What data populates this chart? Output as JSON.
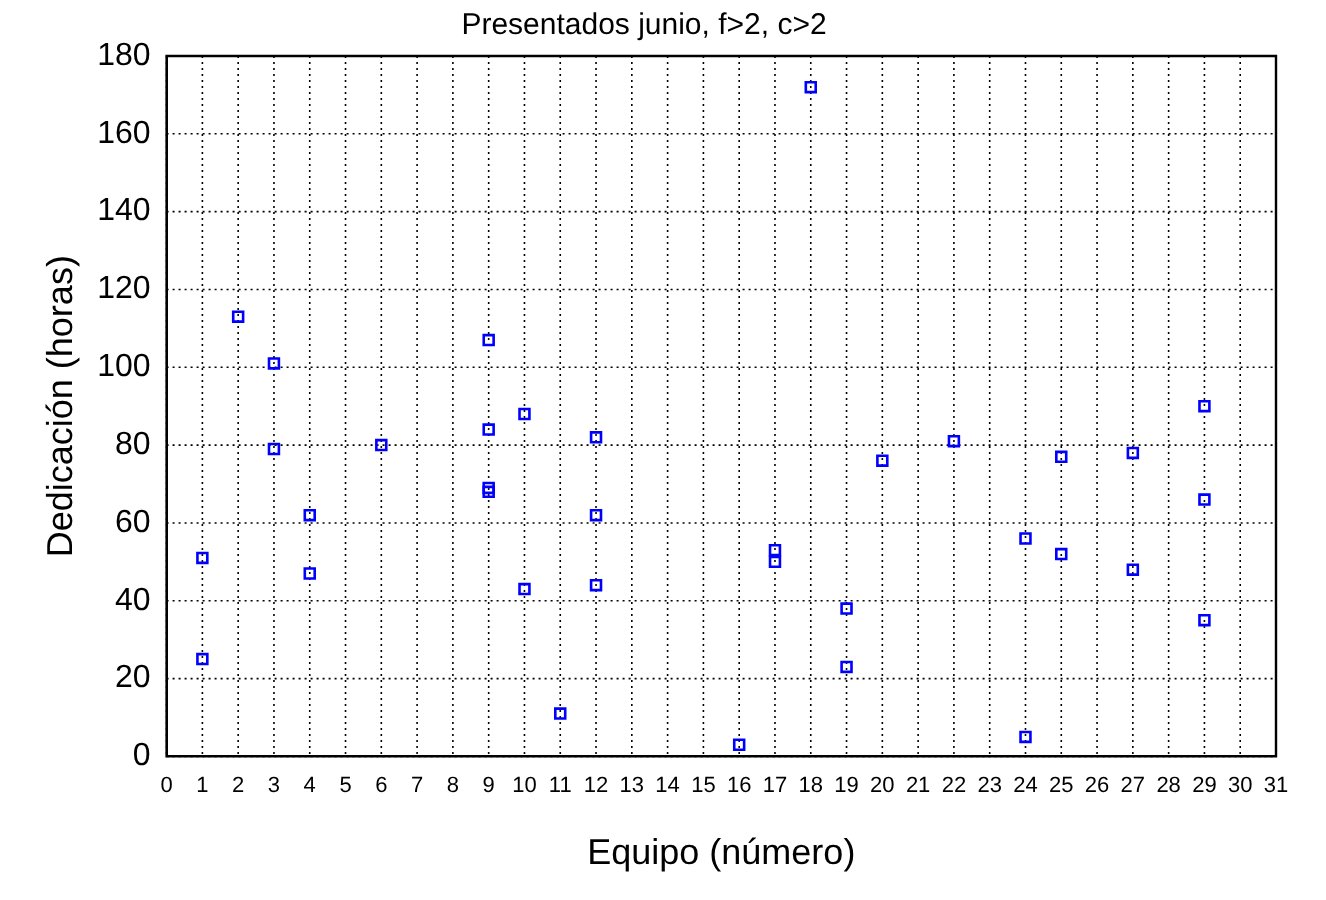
{
  "chart_data": {
    "type": "scatter",
    "title": "Presentados junio, f>2, c>2",
    "xlabel": "Equipo (número)",
    "ylabel": "Dedicación (horas)",
    "x": [
      1,
      1,
      2,
      3,
      3,
      4,
      4,
      6,
      9,
      9,
      9,
      9,
      10,
      10,
      11,
      12,
      12,
      12,
      16,
      17,
      17,
      18,
      19,
      19,
      20,
      22,
      24,
      24,
      25,
      25,
      27,
      27,
      29,
      29,
      29
    ],
    "series": [
      {
        "color": "#0000ff",
        "values": [
          51,
          25,
          113,
          101,
          79,
          62,
          47,
          80,
          107,
          84,
          69,
          68,
          88,
          43,
          11,
          82,
          62,
          44,
          3,
          53,
          50,
          172,
          38,
          23,
          76,
          81,
          56,
          5,
          77,
          52,
          78,
          48,
          90,
          66,
          35
        ]
      }
    ],
    "xlim": [
      0,
      31
    ],
    "xticks": [
      0,
      1,
      2,
      3,
      4,
      5,
      6,
      7,
      8,
      9,
      10,
      11,
      12,
      13,
      14,
      15,
      16,
      17,
      18,
      19,
      20,
      21,
      22,
      23,
      24,
      25,
      26,
      27,
      28,
      29,
      30,
      31
    ],
    "ylim": [
      0,
      180
    ],
    "yticks": [
      0,
      20,
      40,
      60,
      80,
      100,
      120,
      140,
      160,
      180
    ],
    "grid": true,
    "marker": "square",
    "legend": false
  }
}
